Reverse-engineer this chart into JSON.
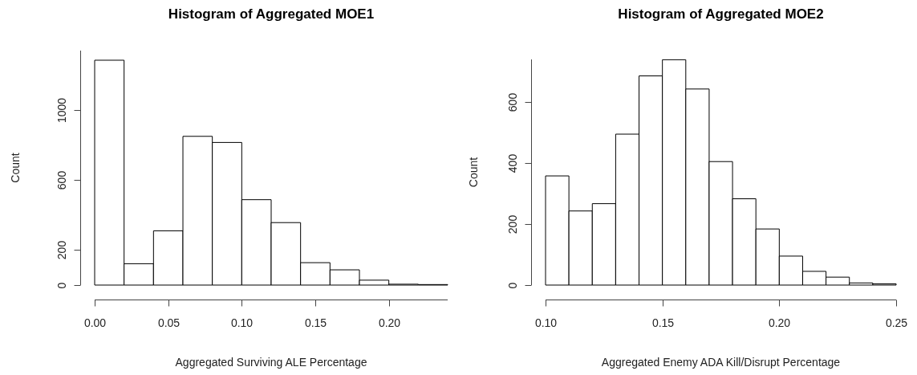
{
  "chart_data": [
    {
      "type": "histogram",
      "title": "Histogram of Aggregated MOE1",
      "xlabel": "Aggregated Surviving ALE Percentage",
      "ylabel": "Count",
      "color": "#ffffff",
      "bins": [
        0,
        0.02,
        0.04,
        0.06,
        0.08,
        0.1,
        0.12,
        0.14,
        0.16,
        0.18,
        0.2,
        0.22,
        0.24
      ],
      "values": [
        1285,
        122,
        310,
        850,
        815,
        488,
        357,
        128,
        87,
        28,
        5,
        3
      ],
      "xlim": [
        0,
        0.24
      ],
      "xticks": [
        {
          "value": 0,
          "label": "0.00"
        },
        {
          "value": 0.05,
          "label": "0.05"
        },
        {
          "value": 0.1,
          "label": "0.10"
        },
        {
          "value": 0.15,
          "label": "0.15"
        },
        {
          "value": 0.2,
          "label": "0.20"
        }
      ],
      "ylim": [
        0,
        1340
      ],
      "yticks": [
        0,
        200,
        600,
        1000
      ],
      "grid": false,
      "legend": false
    },
    {
      "type": "histogram",
      "title": "Histogram of Aggregated MOE2",
      "xlabel": "Aggregated Enemy ADA Kill/Disrupt Percentage",
      "ylabel": "Count",
      "color": "#ffffff",
      "bins": [
        0.1,
        0.11,
        0.12,
        0.13,
        0.14,
        0.15,
        0.16,
        0.17,
        0.18,
        0.19,
        0.2,
        0.21,
        0.22,
        0.23,
        0.24,
        0.25
      ],
      "values": [
        358,
        243,
        267,
        495,
        686,
        739,
        643,
        405,
        283,
        184,
        95,
        45,
        26,
        7,
        4
      ],
      "xlim": [
        0.1,
        0.25
      ],
      "xticks": [
        {
          "value": 0.1,
          "label": "0.10"
        },
        {
          "value": 0.15,
          "label": "0.15"
        },
        {
          "value": 0.2,
          "label": "0.20"
        },
        {
          "value": 0.25,
          "label": "0.25"
        }
      ],
      "ylim": [
        0,
        740
      ],
      "yticks": [
        0,
        200,
        400,
        600
      ],
      "grid": false,
      "legend": false
    }
  ]
}
